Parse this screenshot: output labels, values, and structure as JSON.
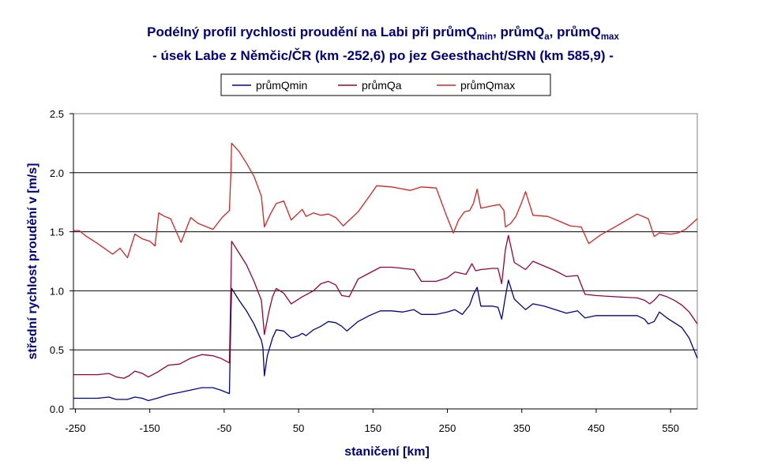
{
  "chart_data": {
    "type": "line",
    "title": {
      "line1_parts": [
        {
          "text": "Podélný profil rychlosti proudění na Labi při průmQ",
          "sub": false
        },
        {
          "text": "min",
          "sub": true
        },
        {
          "text": ", průmQ",
          "sub": false
        },
        {
          "text": "a",
          "sub": true
        },
        {
          "text": ", průmQ",
          "sub": false
        },
        {
          "text": "max",
          "sub": true
        }
      ],
      "line2": "- úsek Labe z Němčic/ČR (km -252,6) po jez Geesthacht/SRN (km 585,9) -"
    },
    "xlabel": "staničení [km]",
    "ylabel": "střední rychlost proudění v  [m/s]",
    "xlim": [
      -252.6,
      585.9
    ],
    "ylim": [
      0,
      2.5
    ],
    "xticks": [
      -250,
      -150,
      -50,
      50,
      150,
      250,
      350,
      450,
      550
    ],
    "xtick_labels": [
      "-250",
      "-150",
      "-50",
      "50",
      "150",
      "250",
      "350",
      "450",
      "550"
    ],
    "yticks": [
      0,
      0.5,
      1.0,
      1.5,
      2.0,
      2.5
    ],
    "ytick_labels": [
      "0.0",
      "0.5",
      "1.0",
      "1.5",
      "2.0",
      "2.5"
    ],
    "grid": "horizontal",
    "legend_position": "top-center",
    "series": [
      {
        "name": "průmQmin",
        "color": "#0000a0",
        "points": [
          [
            -252.6,
            0.09
          ],
          [
            -220,
            0.09
          ],
          [
            -205,
            0.1
          ],
          [
            -195,
            0.08
          ],
          [
            -180,
            0.08
          ],
          [
            -170,
            0.1
          ],
          [
            -160,
            0.09
          ],
          [
            -152,
            0.07
          ],
          [
            -140,
            0.09
          ],
          [
            -125,
            0.12
          ],
          [
            -110,
            0.14
          ],
          [
            -95,
            0.16
          ],
          [
            -80,
            0.18
          ],
          [
            -65,
            0.18
          ],
          [
            -55,
            0.16
          ],
          [
            -43,
            0.13
          ],
          [
            -41,
            0.8
          ],
          [
            -40,
            1.02
          ],
          [
            -30,
            0.92
          ],
          [
            -20,
            0.83
          ],
          [
            -10,
            0.72
          ],
          [
            0,
            0.58
          ],
          [
            2,
            0.52
          ],
          [
            4,
            0.28
          ],
          [
            8,
            0.45
          ],
          [
            15,
            0.6
          ],
          [
            20,
            0.67
          ],
          [
            30,
            0.66
          ],
          [
            40,
            0.6
          ],
          [
            50,
            0.62
          ],
          [
            55,
            0.64
          ],
          [
            60,
            0.62
          ],
          [
            70,
            0.67
          ],
          [
            80,
            0.7
          ],
          [
            90,
            0.74
          ],
          [
            100,
            0.73
          ],
          [
            108,
            0.7
          ],
          [
            115,
            0.66
          ],
          [
            130,
            0.74
          ],
          [
            145,
            0.79
          ],
          [
            160,
            0.83
          ],
          [
            175,
            0.83
          ],
          [
            190,
            0.82
          ],
          [
            205,
            0.84
          ],
          [
            215,
            0.8
          ],
          [
            235,
            0.8
          ],
          [
            250,
            0.82
          ],
          [
            260,
            0.84
          ],
          [
            270,
            0.8
          ],
          [
            280,
            0.88
          ],
          [
            285,
            0.97
          ],
          [
            290,
            1.03
          ],
          [
            295,
            0.87
          ],
          [
            310,
            0.87
          ],
          [
            318,
            0.86
          ],
          [
            323,
            0.76
          ],
          [
            328,
            0.95
          ],
          [
            332,
            1.09
          ],
          [
            340,
            0.93
          ],
          [
            355,
            0.84
          ],
          [
            365,
            0.89
          ],
          [
            380,
            0.87
          ],
          [
            395,
            0.84
          ],
          [
            410,
            0.81
          ],
          [
            425,
            0.83
          ],
          [
            435,
            0.77
          ],
          [
            450,
            0.79
          ],
          [
            475,
            0.79
          ],
          [
            505,
            0.79
          ],
          [
            515,
            0.76
          ],
          [
            520,
            0.72
          ],
          [
            528,
            0.74
          ],
          [
            535,
            0.82
          ],
          [
            545,
            0.77
          ],
          [
            555,
            0.73
          ],
          [
            565,
            0.69
          ],
          [
            575,
            0.6
          ],
          [
            585.9,
            0.43
          ]
        ]
      },
      {
        "name": "průmQa",
        "color": "#a00030",
        "points": [
          [
            -252.6,
            0.29
          ],
          [
            -220,
            0.29
          ],
          [
            -205,
            0.3
          ],
          [
            -195,
            0.27
          ],
          [
            -185,
            0.26
          ],
          [
            -178,
            0.28
          ],
          [
            -170,
            0.32
          ],
          [
            -160,
            0.3
          ],
          [
            -152,
            0.27
          ],
          [
            -140,
            0.31
          ],
          [
            -125,
            0.37
          ],
          [
            -110,
            0.38
          ],
          [
            -95,
            0.43
          ],
          [
            -80,
            0.46
          ],
          [
            -65,
            0.45
          ],
          [
            -55,
            0.43
          ],
          [
            -43,
            0.39
          ],
          [
            -41,
            1.05
          ],
          [
            -40,
            1.42
          ],
          [
            -30,
            1.32
          ],
          [
            -20,
            1.22
          ],
          [
            -10,
            1.08
          ],
          [
            0,
            0.92
          ],
          [
            4,
            0.63
          ],
          [
            10,
            0.82
          ],
          [
            15,
            0.95
          ],
          [
            20,
            1.02
          ],
          [
            30,
            0.98
          ],
          [
            40,
            0.89
          ],
          [
            55,
            0.95
          ],
          [
            70,
            1.0
          ],
          [
            80,
            1.06
          ],
          [
            90,
            1.08
          ],
          [
            100,
            1.05
          ],
          [
            108,
            0.96
          ],
          [
            118,
            0.95
          ],
          [
            130,
            1.1
          ],
          [
            145,
            1.15
          ],
          [
            160,
            1.2
          ],
          [
            175,
            1.2
          ],
          [
            190,
            1.19
          ],
          [
            205,
            1.18
          ],
          [
            215,
            1.08
          ],
          [
            235,
            1.08
          ],
          [
            250,
            1.11
          ],
          [
            260,
            1.16
          ],
          [
            275,
            1.14
          ],
          [
            283,
            1.23
          ],
          [
            288,
            1.17
          ],
          [
            295,
            1.18
          ],
          [
            310,
            1.19
          ],
          [
            318,
            1.19
          ],
          [
            323,
            1.06
          ],
          [
            328,
            1.35
          ],
          [
            332,
            1.47
          ],
          [
            340,
            1.24
          ],
          [
            355,
            1.18
          ],
          [
            365,
            1.25
          ],
          [
            380,
            1.21
          ],
          [
            395,
            1.17
          ],
          [
            410,
            1.12
          ],
          [
            425,
            1.13
          ],
          [
            435,
            0.97
          ],
          [
            450,
            0.96
          ],
          [
            475,
            0.95
          ],
          [
            505,
            0.94
          ],
          [
            515,
            0.92
          ],
          [
            522,
            0.89
          ],
          [
            528,
            0.92
          ],
          [
            535,
            0.97
          ],
          [
            545,
            0.95
          ],
          [
            555,
            0.92
          ],
          [
            565,
            0.88
          ],
          [
            575,
            0.82
          ],
          [
            585.9,
            0.72
          ]
        ]
      },
      {
        "name": "průmQmax",
        "color": "#e02020",
        "points": [
          [
            -252.6,
            1.51
          ],
          [
            -245,
            1.51
          ],
          [
            -235,
            1.46
          ],
          [
            -220,
            1.4
          ],
          [
            -200,
            1.31
          ],
          [
            -190,
            1.36
          ],
          [
            -180,
            1.28
          ],
          [
            -170,
            1.48
          ],
          [
            -160,
            1.44
          ],
          [
            -150,
            1.42
          ],
          [
            -143,
            1.38
          ],
          [
            -138,
            1.66
          ],
          [
            -130,
            1.63
          ],
          [
            -122,
            1.61
          ],
          [
            -108,
            1.41
          ],
          [
            -95,
            1.62
          ],
          [
            -85,
            1.57
          ],
          [
            -65,
            1.52
          ],
          [
            -53,
            1.62
          ],
          [
            -43,
            1.68
          ],
          [
            -41,
            2.0
          ],
          [
            -40,
            2.25
          ],
          [
            -30,
            2.18
          ],
          [
            -20,
            2.08
          ],
          [
            -10,
            1.97
          ],
          [
            0,
            1.8
          ],
          [
            4,
            1.54
          ],
          [
            12,
            1.65
          ],
          [
            20,
            1.74
          ],
          [
            30,
            1.76
          ],
          [
            40,
            1.6
          ],
          [
            50,
            1.66
          ],
          [
            55,
            1.69
          ],
          [
            60,
            1.63
          ],
          [
            70,
            1.66
          ],
          [
            80,
            1.64
          ],
          [
            90,
            1.65
          ],
          [
            100,
            1.62
          ],
          [
            110,
            1.55
          ],
          [
            130,
            1.67
          ],
          [
            145,
            1.8
          ],
          [
            155,
            1.89
          ],
          [
            175,
            1.88
          ],
          [
            200,
            1.85
          ],
          [
            215,
            1.88
          ],
          [
            235,
            1.87
          ],
          [
            248,
            1.65
          ],
          [
            258,
            1.49
          ],
          [
            265,
            1.6
          ],
          [
            273,
            1.67
          ],
          [
            280,
            1.68
          ],
          [
            285,
            1.74
          ],
          [
            290,
            1.86
          ],
          [
            295,
            1.7
          ],
          [
            310,
            1.72
          ],
          [
            320,
            1.73
          ],
          [
            326,
            1.68
          ],
          [
            328,
            1.54
          ],
          [
            335,
            1.57
          ],
          [
            342,
            1.63
          ],
          [
            350,
            1.75
          ],
          [
            355,
            1.84
          ],
          [
            365,
            1.64
          ],
          [
            385,
            1.63
          ],
          [
            400,
            1.59
          ],
          [
            415,
            1.55
          ],
          [
            430,
            1.54
          ],
          [
            440,
            1.4
          ],
          [
            455,
            1.47
          ],
          [
            475,
            1.54
          ],
          [
            505,
            1.65
          ],
          [
            520,
            1.61
          ],
          [
            528,
            1.46
          ],
          [
            535,
            1.49
          ],
          [
            550,
            1.48
          ],
          [
            560,
            1.49
          ],
          [
            570,
            1.52
          ],
          [
            585.9,
            1.61
          ]
        ]
      }
    ]
  }
}
